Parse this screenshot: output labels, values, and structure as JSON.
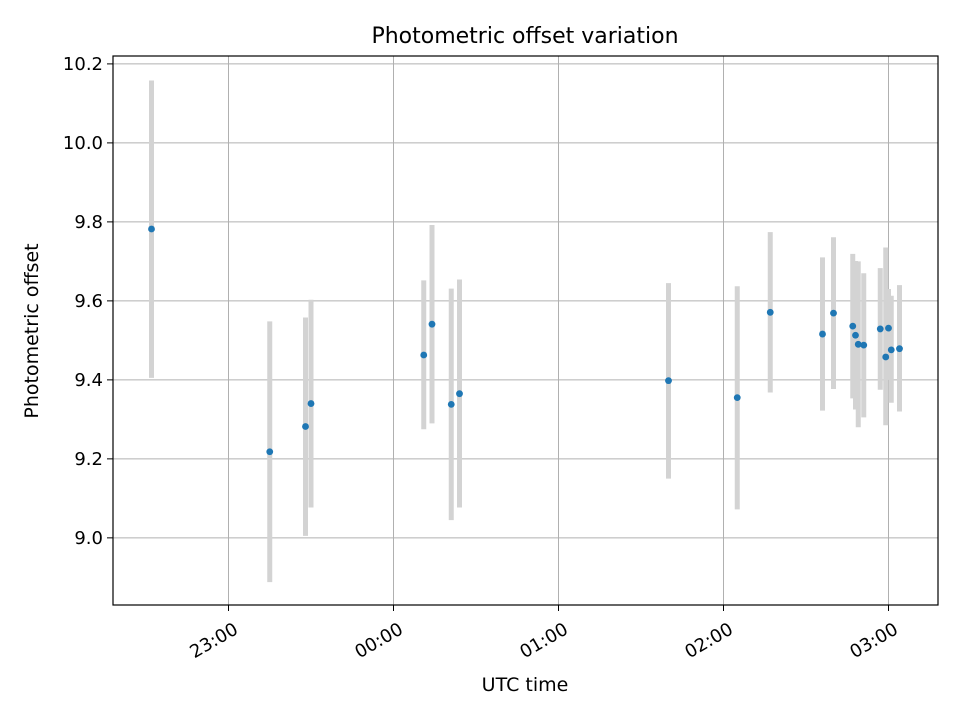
{
  "chart_data": {
    "type": "scatter",
    "title": "Photometric offset variation",
    "xlabel": "UTC time",
    "ylabel": "Photometric offset",
    "x_axis_kind": "time",
    "xlim": [
      "22:18",
      "03:18"
    ],
    "ylim": [
      8.83,
      10.22
    ],
    "grid": true,
    "x_ticks": [
      "23:00",
      "00:00",
      "01:00",
      "02:00",
      "03:00"
    ],
    "y_ticks": [
      "9.0",
      "9.2",
      "9.4",
      "9.6",
      "9.8",
      "10.0",
      "10.2"
    ],
    "colors": {
      "marker": "#1f77b4",
      "errorbar": "#d3d3d3",
      "grid": "#b0b0b0",
      "axes": "#000000"
    },
    "points": [
      {
        "x": "22:32",
        "y": 9.782,
        "ylow": 9.405,
        "yhigh": 10.158
      },
      {
        "x": "23:15",
        "y": 9.218,
        "ylow": 8.888,
        "yhigh": 9.548
      },
      {
        "x": "23:28",
        "y": 9.282,
        "ylow": 9.005,
        "yhigh": 9.558
      },
      {
        "x": "23:30",
        "y": 9.34,
        "ylow": 9.077,
        "yhigh": 9.603
      },
      {
        "x": "00:11",
        "y": 9.463,
        "ylow": 9.275,
        "yhigh": 9.652
      },
      {
        "x": "00:14",
        "y": 9.541,
        "ylow": 9.29,
        "yhigh": 9.792
      },
      {
        "x": "00:21",
        "y": 9.338,
        "ylow": 9.045,
        "yhigh": 9.631
      },
      {
        "x": "00:24",
        "y": 9.365,
        "ylow": 9.077,
        "yhigh": 9.654
      },
      {
        "x": "01:40",
        "y": 9.398,
        "ylow": 9.15,
        "yhigh": 9.645
      },
      {
        "x": "02:05",
        "y": 9.355,
        "ylow": 9.072,
        "yhigh": 9.637
      },
      {
        "x": "02:17",
        "y": 9.571,
        "ylow": 9.368,
        "yhigh": 9.774
      },
      {
        "x": "02:36",
        "y": 9.516,
        "ylow": 9.322,
        "yhigh": 9.71
      },
      {
        "x": "02:40",
        "y": 9.569,
        "ylow": 9.377,
        "yhigh": 9.761
      },
      {
        "x": "02:47",
        "y": 9.536,
        "ylow": 9.353,
        "yhigh": 9.719
      },
      {
        "x": "02:48",
        "y": 9.513,
        "ylow": 9.325,
        "yhigh": 9.701
      },
      {
        "x": "02:49",
        "y": 9.49,
        "ylow": 9.28,
        "yhigh": 9.7
      },
      {
        "x": "02:51",
        "y": 9.488,
        "ylow": 9.305,
        "yhigh": 9.67
      },
      {
        "x": "02:57",
        "y": 9.529,
        "ylow": 9.375,
        "yhigh": 9.683
      },
      {
        "x": "02:59",
        "y": 9.458,
        "ylow": 9.285,
        "yhigh": 9.735
      },
      {
        "x": "03:00",
        "y": 9.531,
        "ylow": 9.4,
        "yhigh": 9.63
      },
      {
        "x": "03:01",
        "y": 9.476,
        "ylow": 9.342,
        "yhigh": 9.613
      },
      {
        "x": "03:04",
        "y": 9.479,
        "ylow": 9.32,
        "yhigh": 9.64
      }
    ]
  }
}
